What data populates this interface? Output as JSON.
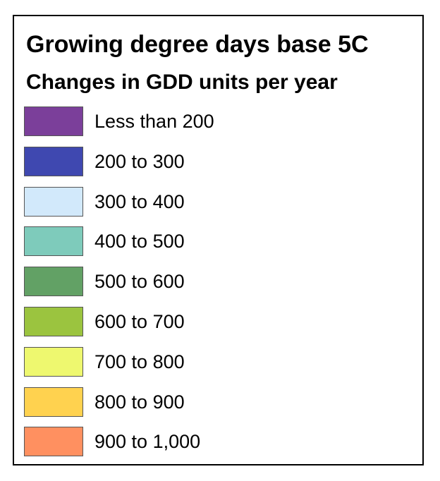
{
  "legend": {
    "title": "Growing degree days base 5C",
    "subtitle": "Changes in GDD units per year",
    "items": [
      {
        "label": "Less than 200",
        "color": "#7b3f9a"
      },
      {
        "label": "200 to 300",
        "color": "#3f48b0"
      },
      {
        "label": "300 to 400",
        "color": "#d2e9fb"
      },
      {
        "label": "400 to 500",
        "color": "#7ecbbb"
      },
      {
        "label": "500 to 600",
        "color": "#62a165"
      },
      {
        "label": "600 to 700",
        "color": "#9bc43f"
      },
      {
        "label": "700 to 800",
        "color": "#eef86f"
      },
      {
        "label": "800 to 900",
        "color": "#ffd24f"
      },
      {
        "label": "900 to 1,000",
        "color": "#ff9060"
      }
    ]
  }
}
